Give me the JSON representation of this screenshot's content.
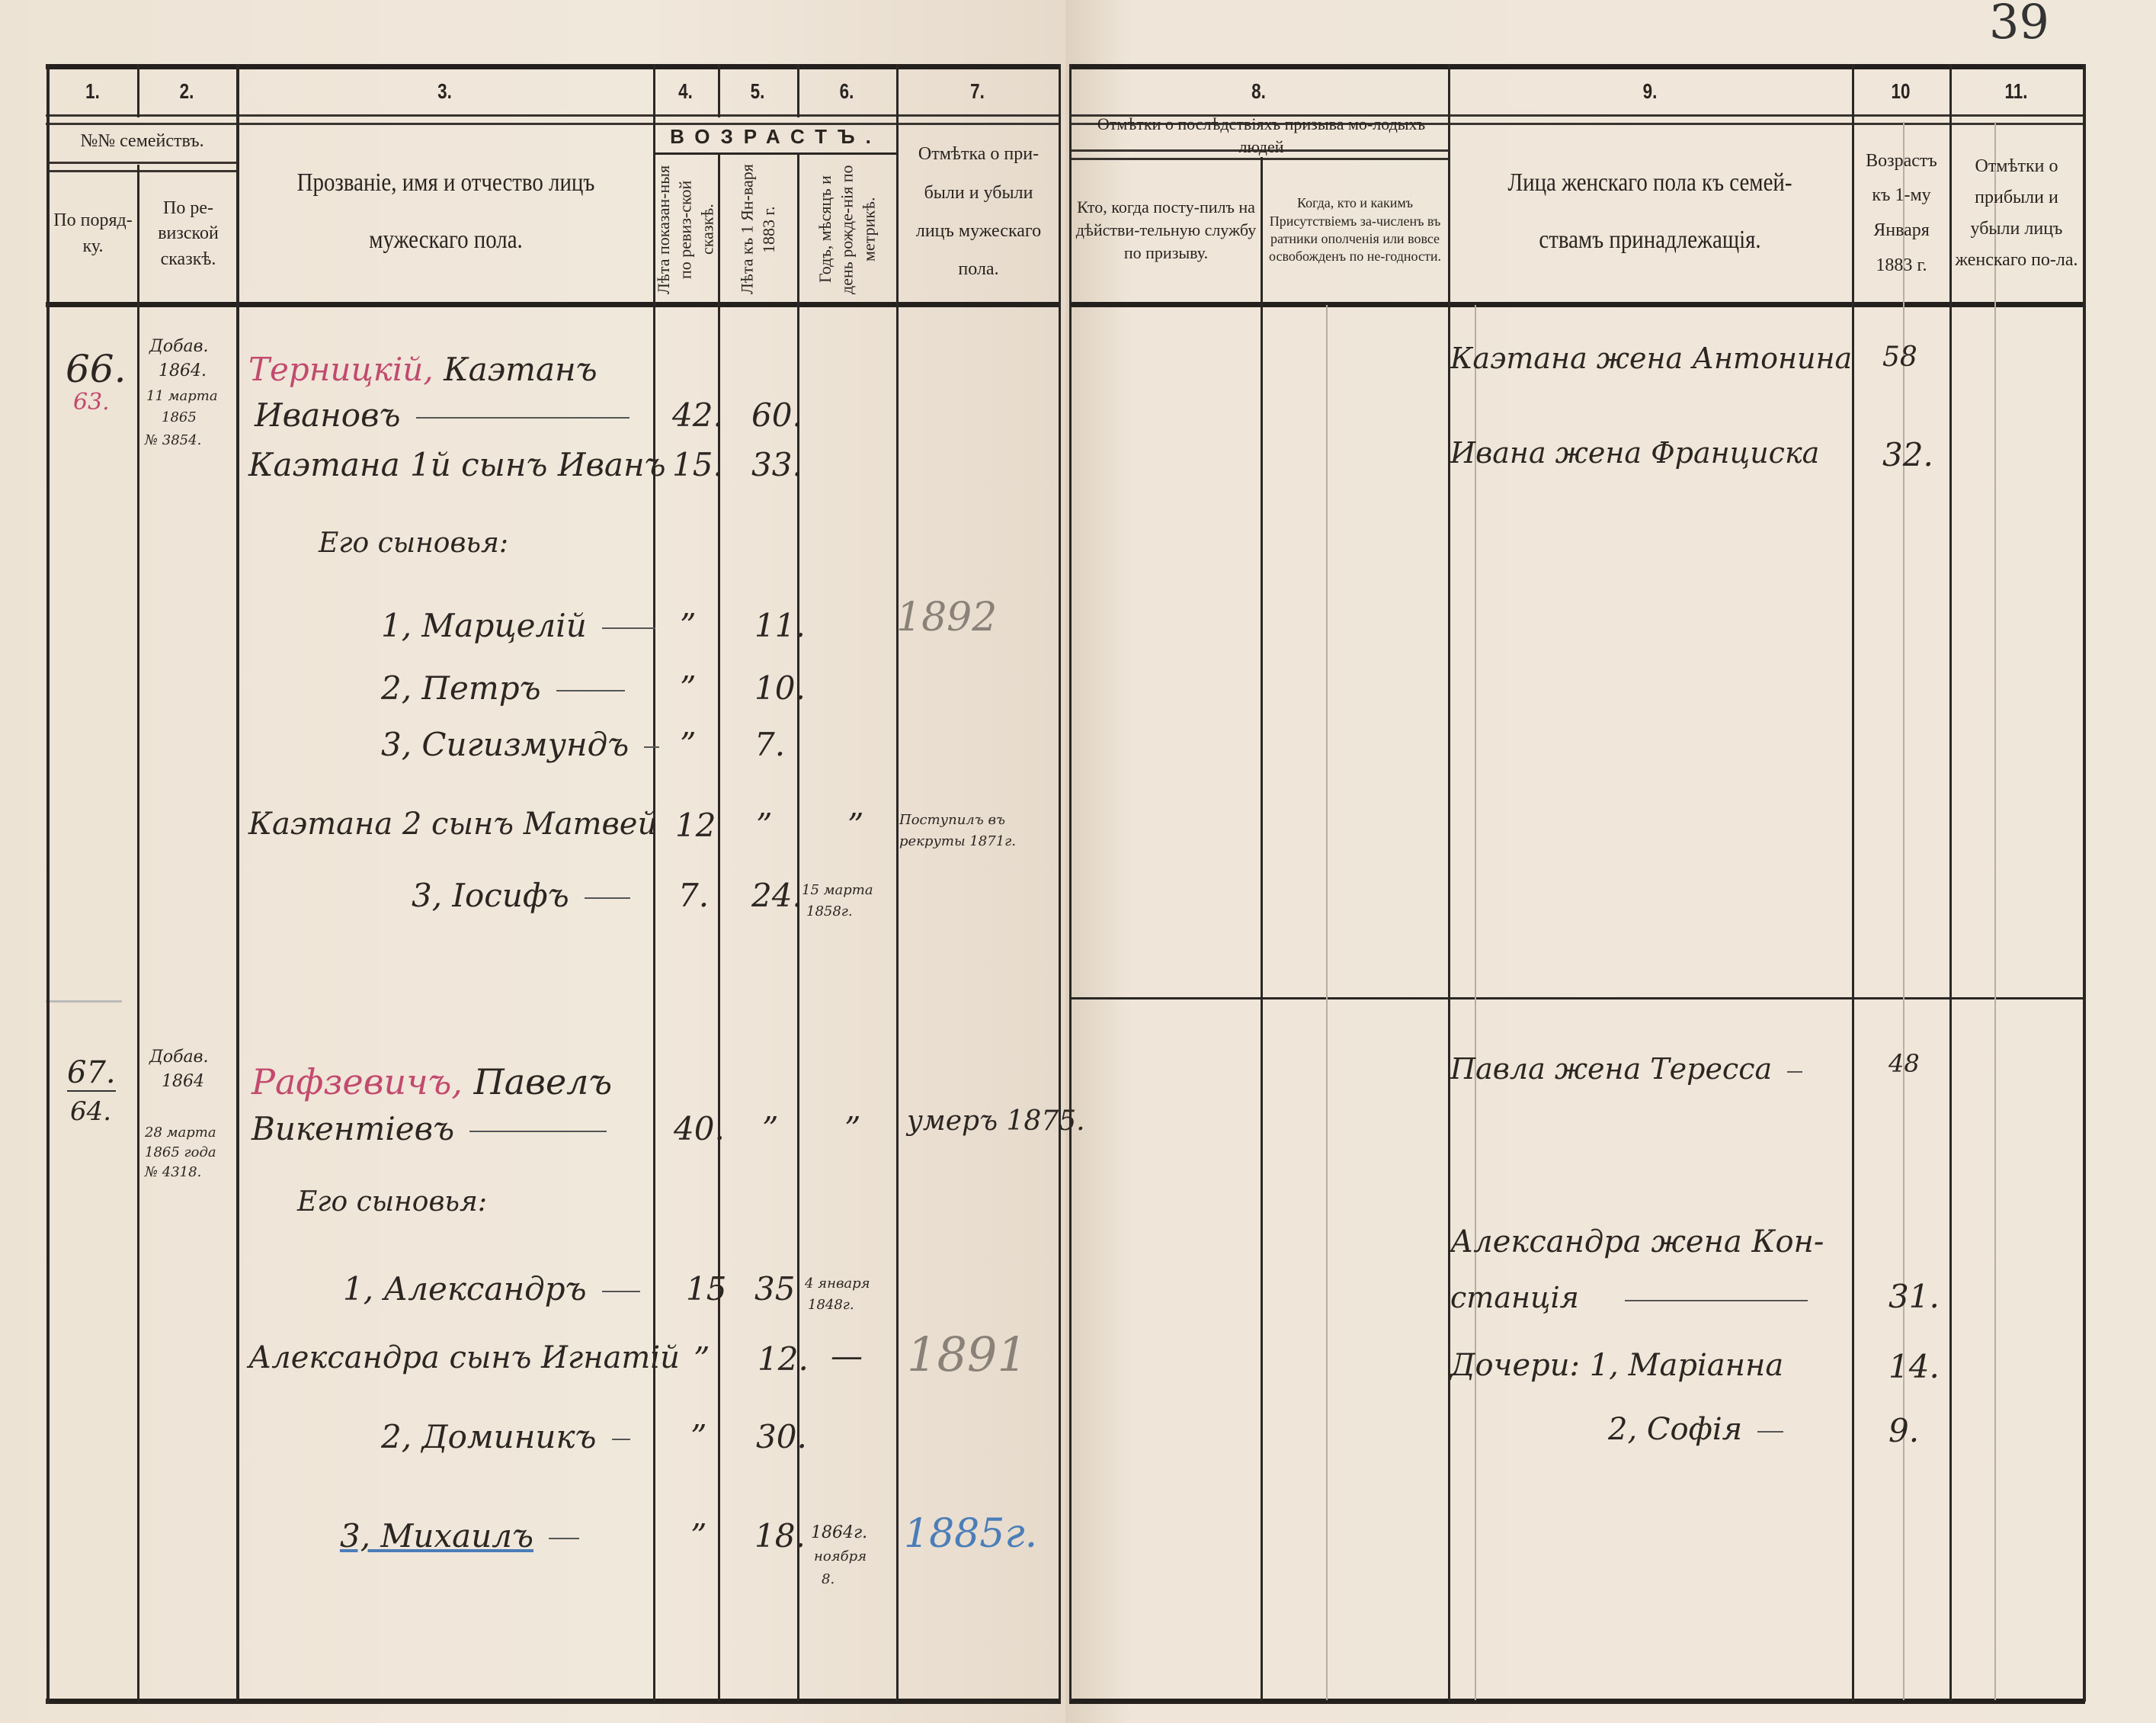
{
  "page_number": "39",
  "header_left": {
    "col_numbers": [
      "1.",
      "2.",
      "3.",
      "4.",
      "5.",
      "6.",
      "7."
    ],
    "families_group": "№№ семействъ.",
    "col1": "По поряд-ку.",
    "col2": "По ре-визской сказкѣ.",
    "col3": "Прозваніе, имя и отчество лицъ мужескаго пола.",
    "age_group": "ВОЗРАСТЪ.",
    "col4": "Лѣта показан-ныя по ревиз-ской сказкѣ.",
    "col5": "Лѣта къ 1 Ян-варя 1883 г.",
    "col6": "Годъ, мѣсяцъ и день рожде-нія по метрикѣ.",
    "col7": "Отмѣтка о при-были и убыли лицъ мужескаго пола."
  },
  "header_right": {
    "col_numbers": [
      "8.",
      "9.",
      "10",
      "11."
    ],
    "col8_group": "Отмѣтки о послѣдствіяхъ призыва мо-лодыхъ людей",
    "col8a": "Кто, когда посту-пилъ на дѣйстви-тельную службу по призыву.",
    "col8b": "Когда, кто и какимъ Присутствіемъ за-численъ въ ратники ополченія или вовсе освобожденъ по не-годности.",
    "col9": "Лица женскаго пола къ семей-ствамъ принадлежащія.",
    "col10": "Возрастъ къ 1-му Января 1883 г.",
    "col11": "Отмѣтки о прибыли и убыли лицъ женскаго по-ла."
  },
  "families": [
    {
      "no": "66.",
      "no_alt": "63.",
      "revision_note": [
        "Добав.",
        "1864.",
        "11 марта",
        "1865",
        "№ 3854."
      ],
      "males": [
        {
          "name_red": "Терницкій,",
          "name": "Каэтанъ"
        },
        {
          "name": "Ивановъ",
          "age_rev": "42.",
          "age_1883": "60."
        },
        {
          "name": "Каэтана 1й сынъ Иванъ",
          "age_rev": "15.",
          "age_1883": "33."
        },
        {
          "name": "Его сыновья:"
        },
        {
          "name": "1, Марцелій",
          "age_rev": "”",
          "age_1883": "11.",
          "note": "1892"
        },
        {
          "name": "2, Петръ",
          "age_rev": "”",
          "age_1883": "10."
        },
        {
          "name": "3, Сигизмундъ",
          "age_rev": "”",
          "age_1883": "7."
        },
        {
          "name": "Каэтана 2 сынъ Матвей",
          "age_rev": "12",
          "age_1883": "”",
          "birth": "”",
          "note": [
            "Поступилъ въ",
            "рекруты 1871г."
          ]
        },
        {
          "name": "3, Іосифъ",
          "age_rev": "7.",
          "age_1883": "24.",
          "birth": [
            "15 марта",
            "1858г."
          ]
        }
      ],
      "females": [
        {
          "name": "Каэтана жена Антонина",
          "age": "58"
        },
        {
          "name": "Ивана жена Франциска",
          "age": "32."
        }
      ]
    },
    {
      "no": "67.",
      "no_alt": "64.",
      "revision_note": [
        "Добав.",
        "1864",
        "28 марта",
        "1865 года",
        "№ 4318."
      ],
      "males": [
        {
          "name_red": "Рафзевичъ,",
          "name": "Павелъ"
        },
        {
          "name": "Викентіевъ",
          "age_rev": "40.",
          "age_1883": "”",
          "birth": "”",
          "note": "умеръ 1875."
        },
        {
          "name": "Его сыновья:"
        },
        {
          "name": "1, Александръ",
          "age_rev": "15",
          "age_1883": "35",
          "birth": [
            "4 января",
            "1848г."
          ]
        },
        {
          "name": "Александра сынъ Игнатій",
          "age_rev": "”",
          "age_1883": "12.",
          "birth": "—",
          "note": "1891"
        },
        {
          "name": "2, Доминикъ",
          "age_rev": "”",
          "age_1883": "30."
        },
        {
          "name": "3, Михаилъ",
          "age_rev": "”",
          "age_1883": "18.",
          "birth": [
            "1864г.",
            "ноября",
            "8."
          ],
          "note": "1885г."
        }
      ],
      "females": [
        {
          "name": "Павла жена Тересса",
          "age": "48"
        },
        {
          "name": "Александра жена Кон-",
          "name2": "станція",
          "age": "31."
        },
        {
          "name": "Дочери: 1, Маріанна",
          "age": "14."
        },
        {
          "name": "2, Софія",
          "age": "9."
        }
      ]
    }
  ],
  "colors": {
    "paper": "#efe5d8",
    "ink": "#2c2622",
    "red_ink": "#c24a6e",
    "blue_ink": "#4b7db8"
  }
}
